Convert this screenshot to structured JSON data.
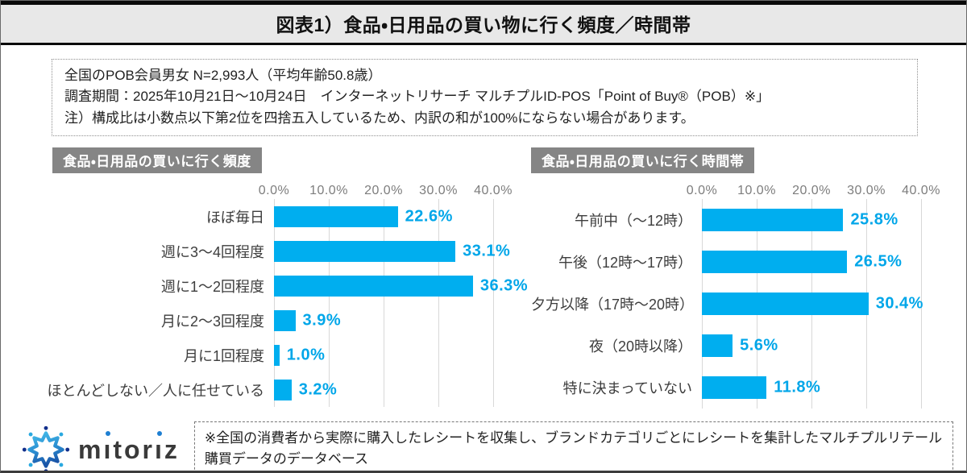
{
  "title": "図表1）食品・日用品の買い物に行く頻度／時間帯",
  "survey_info": {
    "line1": "全国のPOB会員男女 N=2,993人（平均年齢50.8歳）",
    "line2": "調査期間：2025年10月21日～10月24日　インターネットリサーチ マルチプルID-POS「Point of Buy®（POB）※」",
    "line3": "注）構成比は小数点以下第2位を四捨五入しているため、内訳の和が100%にならない場合があります。"
  },
  "colors": {
    "bar": "#00aeef",
    "value_text": "#00a6e9",
    "header_bg": "#858585",
    "gridline": "#d8d8d8"
  },
  "chart_data": [
    {
      "type": "bar",
      "orientation": "horizontal",
      "title": "食品・日用品の買いに行く頻度",
      "categories": [
        "ほぼ毎日",
        "週に3～4回程度",
        "週に1～2回程度",
        "月に2～3回程度",
        "月に1回程度",
        "ほとんどしない／人に任せている"
      ],
      "values": [
        22.6,
        33.1,
        36.3,
        3.9,
        1.0,
        3.2
      ],
      "labels": [
        "22.6%",
        "33.1%",
        "36.3%",
        "3.9%",
        "1.0%",
        "3.2%"
      ],
      "axis_ticks": [
        "0.0%",
        "10.0%",
        "20.0%",
        "30.0%",
        "40.0%"
      ],
      "xlim": [
        0,
        40
      ],
      "grid": true,
      "legend": "none"
    },
    {
      "type": "bar",
      "orientation": "horizontal",
      "title": "食品・日用品の買いに行く時間帯",
      "categories": [
        "午前中（～12時）",
        "午後（12時～17時）",
        "夕方以降（17時～20時）",
        "夜（20時以降）",
        "特に決まっていない"
      ],
      "values": [
        25.8,
        26.5,
        30.4,
        5.6,
        11.8
      ],
      "labels": [
        "25.8%",
        "26.5%",
        "30.4%",
        "5.6%",
        "11.8%"
      ],
      "axis_ticks": [
        "0.0%",
        "10.0%",
        "20.0%",
        "30.0%",
        "40.0%"
      ],
      "xlim": [
        0,
        40
      ],
      "grid": true,
      "legend": "none"
    }
  ],
  "footer": {
    "logo_text": "mitoriz",
    "note": "※全国の消費者から実際に購入したレシートを収集し、ブランドカテゴリごとにレシートを集計したマルチプルリテール購買データのデータベース"
  }
}
